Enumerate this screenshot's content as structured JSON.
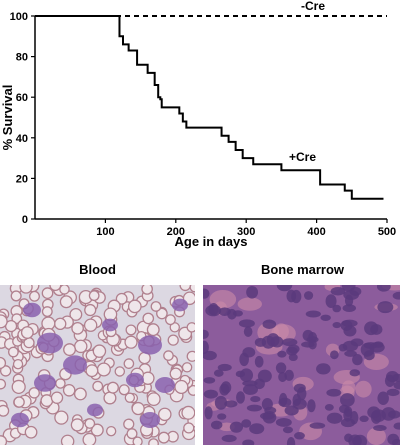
{
  "chart_data": {
    "type": "line",
    "xlabel": "Age in days",
    "ylabel": "% Survival",
    "xlim": [
      0,
      500
    ],
    "ylim": [
      0,
      100
    ],
    "xticks": [
      100,
      200,
      300,
      400,
      500
    ],
    "yticks": [
      0,
      20,
      40,
      60,
      80,
      100
    ],
    "grid": false,
    "series": [
      {
        "name": "-Cre",
        "style": "dashed",
        "color": "#000000",
        "x": [
          0,
          500
        ],
        "y": [
          100,
          100
        ]
      },
      {
        "name": "+Cre",
        "style": "step",
        "color": "#000000",
        "x": [
          0,
          115,
          120,
          125,
          133,
          145,
          160,
          170,
          175,
          178,
          180,
          185,
          205,
          210,
          215,
          222,
          265,
          275,
          285,
          295,
          310,
          350,
          405,
          440,
          450,
          495
        ],
        "y": [
          100,
          100,
          90,
          86,
          83,
          76,
          72,
          66,
          60,
          59,
          55,
          55,
          52,
          48,
          45,
          45,
          41,
          38,
          34,
          30,
          27,
          24,
          17,
          14,
          10,
          10
        ]
      }
    ]
  },
  "panels": {
    "blood": {
      "title": "Blood"
    },
    "marrow": {
      "title": "Bone marrow"
    }
  },
  "colors": {
    "blood_background": "#dcd8e2",
    "rbc_outline": "#b0808e",
    "rbc_fill": "#efe6ea",
    "leukocyte": "#8a62ae",
    "marrow_background": "#8c5c9c",
    "marrow_nucleus": "#5a3a7c",
    "marrow_pink": "#cc8aa8"
  }
}
